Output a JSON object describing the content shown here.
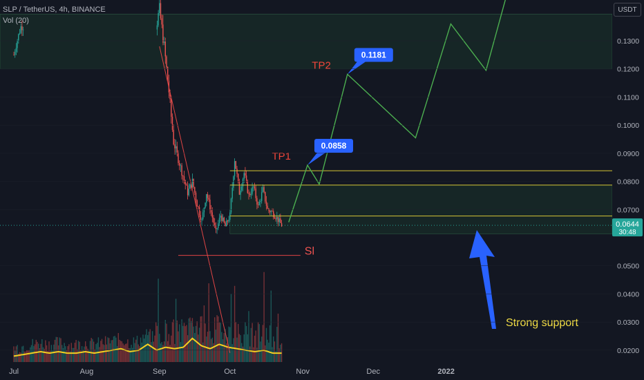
{
  "chart_data": {
    "type": "candlestick",
    "title": "SLP / TetherUS, 4h, BINANCE",
    "volume_indicator": "Vol (20)",
    "axis_unit": "USDT",
    "y_ticks": [
      "0.1300",
      "0.1200",
      "0.1100",
      "0.1000",
      "0.0900",
      "0.0800",
      "0.0700",
      "0.0500",
      "0.0400",
      "0.0300",
      "0.0200"
    ],
    "x_ticks": [
      "Jul",
      "Aug",
      "Sep",
      "Oct",
      "Nov",
      "Dec",
      "2022"
    ],
    "ylim": [
      0.0148,
      0.1445
    ],
    "price_path": [
      {
        "t": "Jul 1",
        "p": 0.125
      },
      {
        "t": "Jul 3",
        "p": 0.132
      },
      {
        "t": "Jul 4",
        "p": 0.135
      },
      {
        "t": "Aug 31",
        "p": 0.137
      },
      {
        "t": "Sep 1",
        "p": 0.141
      },
      {
        "t": "Sep 3",
        "p": 0.128
      },
      {
        "t": "Sep 5",
        "p": 0.112
      },
      {
        "t": "Sep 7",
        "p": 0.094
      },
      {
        "t": "Sep 9",
        "p": 0.088
      },
      {
        "t": "Sep 11",
        "p": 0.082
      },
      {
        "t": "Sep 13",
        "p": 0.076
      },
      {
        "t": "Sep 15",
        "p": 0.08
      },
      {
        "t": "Sep 17",
        "p": 0.072
      },
      {
        "t": "Sep 19",
        "p": 0.066
      },
      {
        "t": "Sep 21",
        "p": 0.076
      },
      {
        "t": "Sep 23",
        "p": 0.069
      },
      {
        "t": "Sep 25",
        "p": 0.062
      },
      {
        "t": "Sep 27",
        "p": 0.068
      },
      {
        "t": "Sep 29",
        "p": 0.064
      },
      {
        "t": "Oct 1",
        "p": 0.068
      },
      {
        "t": "Oct 3",
        "p": 0.088
      },
      {
        "t": "Oct 5",
        "p": 0.076
      },
      {
        "t": "Oct 7",
        "p": 0.083
      },
      {
        "t": "Oct 9",
        "p": 0.075
      },
      {
        "t": "Oct 11",
        "p": 0.078
      },
      {
        "t": "Oct 13",
        "p": 0.071
      },
      {
        "t": "Oct 15",
        "p": 0.077
      },
      {
        "t": "Oct 17",
        "p": 0.07
      },
      {
        "t": "Oct 19",
        "p": 0.069
      },
      {
        "t": "Oct 21",
        "p": 0.067
      },
      {
        "t": "Oct 23",
        "p": 0.0644
      }
    ],
    "volume_path": [
      0.2,
      0.25,
      0.3,
      0.35,
      0.3,
      0.35,
      0.3,
      0.3,
      0.35,
      0.3,
      0.35,
      0.4,
      0.45,
      0.35,
      0.4,
      0.6,
      0.4,
      0.5,
      0.45,
      0.5,
      0.8,
      0.55,
      0.45,
      0.6,
      0.5,
      0.45,
      0.4,
      0.35,
      0.4,
      0.3,
      0.3
    ],
    "current_price": "0.0644",
    "countdown": "30:48",
    "zones": [
      {
        "from": 0.12,
        "to": 0.1395,
        "t0": "Jul 1",
        "t1": "end"
      },
      {
        "from": 0.0614,
        "to": 0.0787,
        "t0": "Oct 1",
        "t1": "end"
      }
    ],
    "hlines": [
      {
        "value": 0.0838,
        "color": "#d6c634",
        "t0": "Oct 1",
        "t1": "end"
      },
      {
        "value": 0.0787,
        "color": "#d6c634",
        "t0": "Oct 1",
        "t1": "end"
      },
      {
        "value": 0.0677,
        "color": "#d6c634",
        "t0": "Oct 1",
        "t1": "end"
      },
      {
        "value": 0.0537,
        "color": "#e04545",
        "t0": "Sep 9",
        "t1": "Oct 31"
      }
    ],
    "trendline": {
      "color": "#e04545",
      "points": [
        {
          "t": "Sep 1",
          "p": 0.128
        },
        {
          "t": "Oct 1",
          "p": 0.019
        }
      ]
    },
    "projection": [
      {
        "t": "Oct 26",
        "p": 0.0655
      },
      {
        "t": "Nov 3",
        "p": 0.0858
      },
      {
        "t": "Nov 8",
        "p": 0.079
      },
      {
        "t": "Nov 20",
        "p": 0.1181
      },
      {
        "t": "Dec 19",
        "p": 0.0955
      },
      {
        "t": "Jan 3",
        "p": 0.136
      },
      {
        "t": "Jan 18",
        "p": 0.1195
      },
      {
        "t": "Jan 28",
        "p": 0.15
      }
    ],
    "annotations": {
      "tp1_label": "TP1",
      "tp1_value": "0.0858",
      "tp2_label": "TP2",
      "tp2_value": "0.1181",
      "sl_label": "Sl",
      "support_label": "Strong support"
    },
    "colors": {
      "background": "#131722",
      "up": "#26a69a",
      "down": "#ef5350",
      "projection": "#4caf50",
      "volume_ma": "#f5d020",
      "zone": "#1b3a2c",
      "label_bg": "#2962ff",
      "arrow": "#2962ff",
      "support_text": "#f5e045",
      "tp_text": "#f2463a"
    }
  }
}
